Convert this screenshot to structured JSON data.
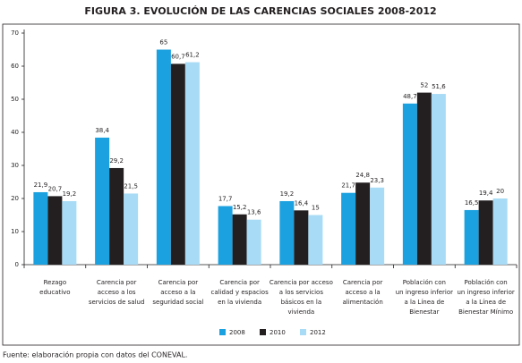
{
  "chart_data": {
    "type": "bar",
    "title": "FIGURA 3. EVOLUCIÓN DE LAS CARENCIAS SOCIALES 2008-2012",
    "categories": [
      [
        "Rezago",
        "educativo"
      ],
      [
        "Carencia por",
        "acceso a los",
        "servicios de salud"
      ],
      [
        "Carencia por",
        "acceso a la",
        "seguridad social"
      ],
      [
        "Carencia por",
        "calidad y espacios",
        "en la vivienda"
      ],
      [
        "Carencia por acceso",
        "a los servicios",
        "básicos en la",
        "vivienda"
      ],
      [
        "Carencia por",
        "acceso a la",
        "alimentación"
      ],
      [
        "Población con",
        "un ingreso inferior",
        "a la Línea de",
        "Bienestar"
      ],
      [
        "Población con",
        "un ingreso inferior",
        "a la Línea de",
        "Bienestar Mínimo"
      ]
    ],
    "series": [
      {
        "name": "2008",
        "color": "#1ba1df",
        "values": [
          21.9,
          38.4,
          65,
          17.7,
          19.2,
          21.7,
          48.7,
          16.5
        ],
        "value_labels": [
          "21,9",
          "38,4",
          "65",
          "17,7",
          "19,2",
          "21,7",
          "48,7",
          "16,5"
        ]
      },
      {
        "name": "2010",
        "color": "#231f20",
        "values": [
          20.7,
          29.2,
          60.7,
          15.2,
          16.4,
          24.8,
          52,
          19.4
        ],
        "value_labels": [
          "20,7",
          "29,2",
          "60,7",
          "15,2",
          "16,4",
          "24,8",
          "52",
          "19,4"
        ]
      },
      {
        "name": "2012",
        "color": "#a8dbf5",
        "values": [
          19.2,
          21.5,
          61.2,
          13.6,
          15,
          23.3,
          51.6,
          20
        ],
        "value_labels": [
          "19,2",
          "21,5",
          "61,2",
          "13,6",
          "15",
          "23,3",
          "51,6",
          "20"
        ]
      }
    ],
    "ylim": [
      0,
      70
    ],
    "yticks": [
      0,
      10,
      20,
      30,
      40,
      50,
      60,
      70
    ],
    "source": "Fuente: elaboración propia con datos del CONEVAL."
  }
}
